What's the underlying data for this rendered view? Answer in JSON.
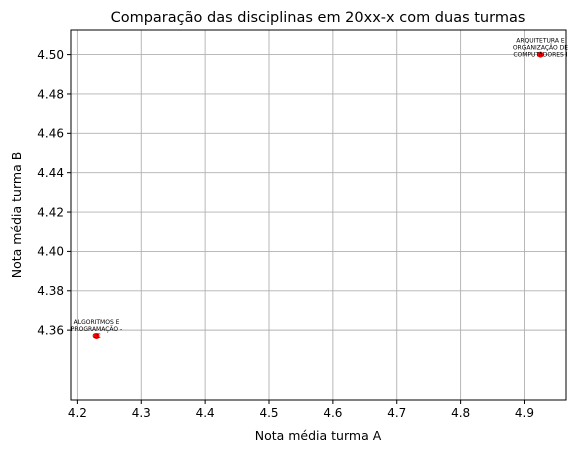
{
  "chart_data": {
    "type": "scatter",
    "title": "Comparação das disciplinas em 20xx-x com duas turmas",
    "xlabel": "Nota média turma A",
    "ylabel": "Nota média turma B",
    "xlim": [
      4.19,
      4.965
    ],
    "ylim": [
      4.3245,
      4.5125
    ],
    "xticks": [
      4.2,
      4.3,
      4.4,
      4.5,
      4.6,
      4.7,
      4.8,
      4.9
    ],
    "xtick_labels": [
      "4.2",
      "4.3",
      "4.4",
      "4.5",
      "4.6",
      "4.7",
      "4.8",
      "4.9"
    ],
    "yticks": [
      4.36,
      4.38,
      4.4,
      4.42,
      4.44,
      4.46,
      4.48,
      4.5
    ],
    "ytick_labels": [
      "4.36",
      "4.38",
      "4.40",
      "4.42",
      "4.44",
      "4.46",
      "4.48",
      "4.50"
    ],
    "grid": true,
    "point_color": "#ff0000",
    "points": [
      {
        "x": 4.23,
        "y": 4.357,
        "label_lines": [
          "ALGORITMOS E",
          "PROGRAMAÇÃO -",
          "CC"
        ]
      },
      {
        "x": 4.925,
        "y": 4.5,
        "label_lines": [
          "ARQUITETURA E",
          "ORGANIZAÇÃO DE",
          "COMPUTADORES I"
        ]
      }
    ]
  }
}
